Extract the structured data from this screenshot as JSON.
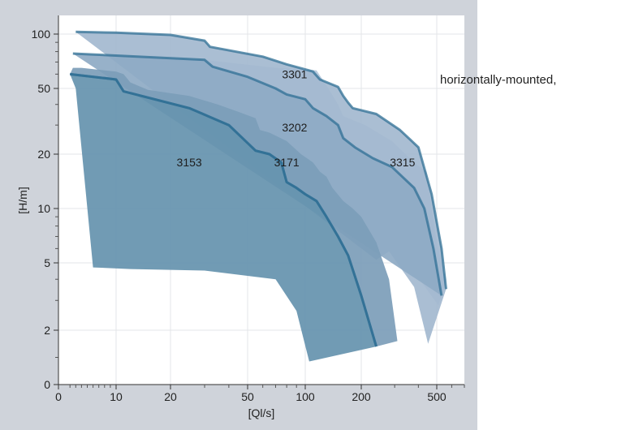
{
  "side_caption": "horizontally-mounted,",
  "colors": {
    "panel_bg": "#cfd3da",
    "plot_bg": "#ffffff",
    "grid": "#e3e5e9",
    "fill_3315": "#b5c8dc",
    "fill_3301": "#a3b9cf",
    "fill_3202": "#8eaac4",
    "fill_3171": "#7c9db8",
    "fill_3153": "#6593ae",
    "line": "#2f6f94"
  },
  "chart_data": {
    "type": "area",
    "title": "",
    "xlabel": "[Ql/s]",
    "ylabel": "[H/m]",
    "x_scale": "log",
    "y_scale": "log",
    "xlim": [
      0,
      700
    ],
    "ylim": [
      0,
      150
    ],
    "x_ticks": [
      0,
      10,
      20,
      50,
      100,
      200,
      500
    ],
    "y_ticks": [
      0,
      2,
      5,
      10,
      20,
      50,
      100
    ],
    "grid": true,
    "series": [
      {
        "name": "3315",
        "points": [
          [
            30,
            72
          ],
          [
            70,
            65
          ],
          [
            115,
            63
          ],
          [
            130,
            52
          ],
          [
            150,
            40
          ],
          [
            160,
            34
          ],
          [
            210,
            30
          ],
          [
            290,
            24
          ],
          [
            380,
            18
          ],
          [
            440,
            16
          ],
          [
            460,
            12
          ],
          [
            500,
            6.5
          ],
          [
            560,
            4
          ],
          [
            510,
            2.8
          ],
          [
            310,
            6
          ]
        ]
      },
      {
        "name": "3301",
        "points": [
          [
            3,
            105
          ],
          [
            10,
            103
          ],
          [
            20,
            99
          ],
          [
            30,
            92
          ],
          [
            32,
            85
          ],
          [
            60,
            75
          ],
          [
            80,
            68
          ],
          [
            110,
            62
          ],
          [
            120,
            56
          ],
          [
            150,
            51
          ],
          [
            160,
            45
          ],
          [
            170,
            41
          ],
          [
            180,
            38
          ],
          [
            240,
            35
          ],
          [
            320,
            28
          ],
          [
            400,
            22
          ],
          [
            470,
            12
          ],
          [
            530,
            6
          ],
          [
            560,
            3.5
          ],
          [
            450,
            1.5
          ],
          [
            380,
            3.6
          ],
          [
            280,
            5.8
          ],
          [
            240,
            5.2
          ]
        ],
        "curve": [
          [
            3,
            105
          ],
          [
            10,
            103
          ],
          [
            20,
            99
          ],
          [
            30,
            92
          ],
          [
            32,
            85
          ],
          [
            60,
            75
          ],
          [
            80,
            68
          ],
          [
            110,
            62
          ],
          [
            120,
            56
          ],
          [
            150,
            51
          ],
          [
            160,
            45
          ],
          [
            170,
            41
          ],
          [
            180,
            38
          ],
          [
            240,
            35
          ],
          [
            320,
            28
          ],
          [
            400,
            22
          ],
          [
            470,
            12
          ],
          [
            530,
            6
          ],
          [
            560,
            3.5
          ]
        ]
      },
      {
        "name": "3202",
        "points": [
          [
            2.5,
            78
          ],
          [
            10,
            76
          ],
          [
            30,
            72
          ],
          [
            33,
            66
          ],
          [
            50,
            58
          ],
          [
            70,
            50
          ],
          [
            80,
            46
          ],
          [
            100,
            43
          ],
          [
            110,
            38
          ],
          [
            130,
            34
          ],
          [
            150,
            30
          ],
          [
            160,
            25
          ],
          [
            185,
            22
          ],
          [
            230,
            19
          ],
          [
            290,
            17
          ],
          [
            380,
            13
          ],
          [
            430,
            10
          ],
          [
            480,
            6
          ],
          [
            530,
            3.2
          ]
        ],
        "curve": [
          [
            2.5,
            78
          ],
          [
            10,
            76
          ],
          [
            30,
            72
          ],
          [
            33,
            66
          ],
          [
            50,
            58
          ],
          [
            70,
            50
          ],
          [
            80,
            46
          ],
          [
            100,
            43
          ],
          [
            110,
            38
          ],
          [
            130,
            34
          ],
          [
            150,
            30
          ],
          [
            160,
            25
          ],
          [
            185,
            22
          ],
          [
            230,
            19
          ],
          [
            290,
            17
          ],
          [
            380,
            13
          ],
          [
            430,
            10
          ],
          [
            480,
            6
          ],
          [
            530,
            3.2
          ]
        ]
      },
      {
        "name": "3171",
        "points": [
          [
            2,
            60
          ],
          [
            8,
            57
          ],
          [
            10,
            56
          ],
          [
            11,
            48
          ],
          [
            25,
            38
          ],
          [
            40,
            30
          ],
          [
            55,
            21
          ],
          [
            65,
            20
          ],
          [
            75,
            18
          ],
          [
            80,
            14
          ],
          [
            90,
            13
          ],
          [
            100,
            12
          ],
          [
            115,
            11
          ],
          [
            130,
            9
          ],
          [
            150,
            7
          ],
          [
            170,
            5.5
          ],
          [
            200,
            3.2
          ],
          [
            240,
            1.4
          ],
          [
            310,
            1.6
          ],
          [
            280,
            4
          ],
          [
            240,
            6.5
          ],
          [
            200,
            9
          ],
          [
            180,
            10
          ],
          [
            160,
            11
          ],
          [
            140,
            13
          ],
          [
            130,
            15
          ],
          [
            120,
            16
          ],
          [
            110,
            18
          ],
          [
            95,
            20
          ],
          [
            80,
            24
          ],
          [
            65,
            27
          ],
          [
            58,
            28
          ],
          [
            55,
            33
          ],
          [
            45,
            36
          ],
          [
            35,
            40
          ],
          [
            25,
            45
          ],
          [
            15,
            49
          ],
          [
            12,
            54
          ],
          [
            11,
            60
          ],
          [
            10,
            62
          ],
          [
            8,
            63
          ],
          [
            4,
            65
          ],
          [
            2.5,
            65
          ]
        ],
        "curve": [
          [
            2,
            60
          ],
          [
            8,
            57
          ],
          [
            10,
            56
          ],
          [
            11,
            48
          ],
          [
            25,
            38
          ],
          [
            40,
            30
          ],
          [
            55,
            21
          ],
          [
            65,
            20
          ],
          [
            75,
            18
          ],
          [
            80,
            14
          ],
          [
            90,
            13
          ],
          [
            100,
            12
          ],
          [
            115,
            11
          ],
          [
            130,
            9
          ],
          [
            150,
            7
          ],
          [
            170,
            5.5
          ],
          [
            200,
            3.2
          ],
          [
            240,
            1.4
          ]
        ]
      },
      {
        "name": "3153",
        "points": [
          [
            2,
            60
          ],
          [
            8,
            57
          ],
          [
            10,
            56
          ],
          [
            11,
            48
          ],
          [
            25,
            38
          ],
          [
            40,
            30
          ],
          [
            55,
            21
          ],
          [
            65,
            20
          ],
          [
            75,
            18
          ],
          [
            80,
            14
          ],
          [
            90,
            13
          ],
          [
            100,
            12
          ],
          [
            115,
            11
          ],
          [
            130,
            9
          ],
          [
            150,
            7
          ],
          [
            170,
            5.5
          ],
          [
            200,
            3.2
          ],
          [
            240,
            1.4
          ],
          [
            105,
            0.85
          ],
          [
            90,
            2.6
          ],
          [
            70,
            4
          ],
          [
            30,
            4.5
          ],
          [
            12,
            4.6
          ],
          [
            6,
            4.7
          ],
          [
            3,
            50
          ]
        ],
        "curve": [
          [
            2,
            60
          ],
          [
            8,
            57
          ],
          [
            10,
            56
          ],
          [
            11,
            48
          ],
          [
            25,
            38
          ],
          [
            40,
            30
          ],
          [
            55,
            21
          ],
          [
            65,
            20
          ],
          [
            75,
            18
          ],
          [
            80,
            14
          ],
          [
            90,
            13
          ],
          [
            100,
            12
          ],
          [
            115,
            11
          ],
          [
            130,
            9
          ],
          [
            150,
            7
          ],
          [
            170,
            5.5
          ],
          [
            200,
            3.2
          ],
          [
            240,
            1.4
          ]
        ]
      }
    ],
    "labels": [
      {
        "text": "3301",
        "x": 88,
        "y": 60
      },
      {
        "text": "3202",
        "x": 88,
        "y": 29
      },
      {
        "text": "3153",
        "x": 25,
        "y": 18
      },
      {
        "text": "3171",
        "x": 80,
        "y": 18
      },
      {
        "text": "3315",
        "x": 330,
        "y": 18
      }
    ]
  }
}
